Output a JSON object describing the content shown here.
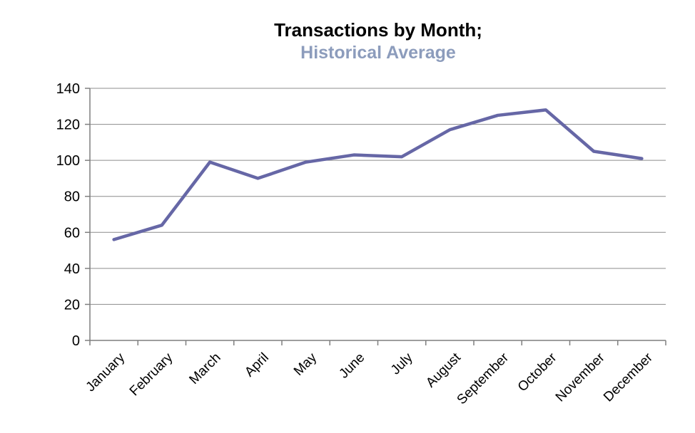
{
  "title": "Transactions by Month;",
  "subtitle": "Historical Average",
  "colors": {
    "background": "#FFFFFF",
    "title": "#000000",
    "subtitle": "#8C9CBC",
    "line": "#6667A6",
    "gridline": "#8C8C8C",
    "axis": "#7F7F7F",
    "tick_label": "#000000"
  },
  "chart_data": {
    "type": "line",
    "title": "Transactions by Month;",
    "subtitle": "Historical Average",
    "categories": [
      "January",
      "February",
      "March",
      "April",
      "May",
      "June",
      "July",
      "August",
      "September",
      "October",
      "November",
      "December"
    ],
    "series": [
      {
        "name": "Historical Average",
        "values": [
          56,
          64,
          99,
          90,
          99,
          103,
          102,
          117,
          125,
          128,
          105,
          101
        ]
      }
    ],
    "xlabel": "",
    "ylabel": "",
    "ylim": [
      0,
      140
    ],
    "yticks": [
      0,
      20,
      40,
      60,
      80,
      100,
      120,
      140
    ],
    "grid": "horizontal",
    "legend": "none",
    "x_label_rotation_deg": -45
  }
}
